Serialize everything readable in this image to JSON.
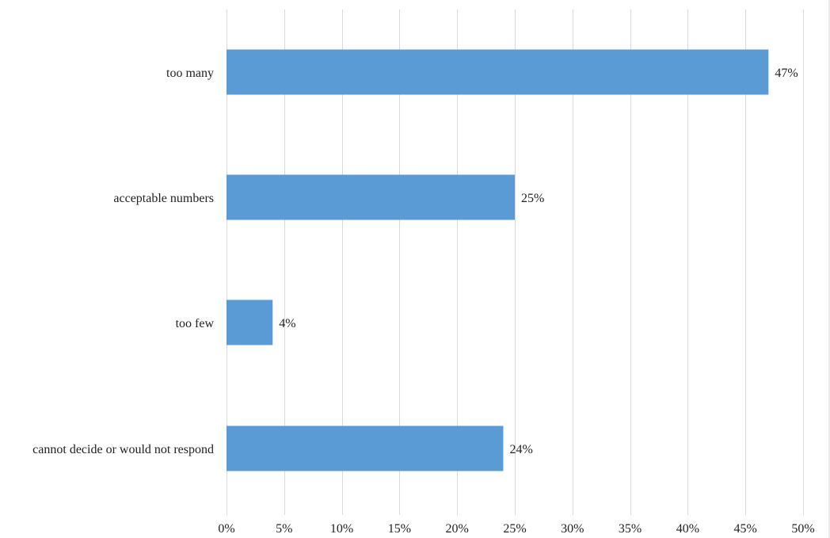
{
  "chart_data": {
    "type": "bar",
    "orientation": "horizontal",
    "title": "",
    "xlabel": "",
    "ylabel": "",
    "categories": [
      "too many",
      "acceptable numbers",
      "too few",
      "cannot decide or would not respond"
    ],
    "values": [
      47,
      25,
      4,
      24
    ],
    "data_labels": [
      "47%",
      "25%",
      "4%",
      "24%"
    ],
    "xlim": [
      0,
      50
    ],
    "x_ticks": [
      0,
      5,
      10,
      15,
      20,
      25,
      30,
      35,
      40,
      45,
      50
    ],
    "x_tick_labels": [
      "0%",
      "5%",
      "10%",
      "15%",
      "20%",
      "25%",
      "30%",
      "35%",
      "40%",
      "45%",
      "50%"
    ],
    "grid": "vertical",
    "legend": "none",
    "bar_color": "#5b9bd5"
  }
}
